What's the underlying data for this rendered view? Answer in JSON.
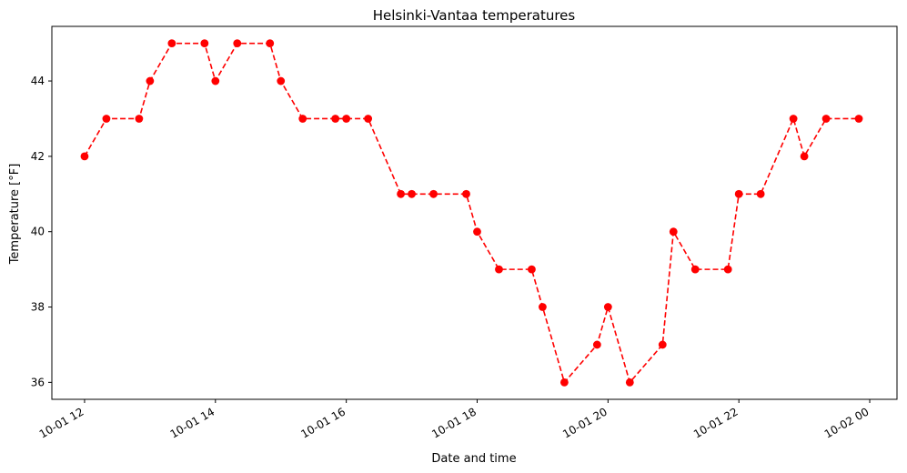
{
  "chart_data": {
    "type": "line",
    "title": "Helsinki-Vantaa temperatures",
    "xlabel": "Date and time",
    "ylabel": "Temperature [°F]",
    "x_ticks": [
      {
        "t": "2021-10-01T12:00",
        "label": "10-01 12"
      },
      {
        "t": "2021-10-01T14:00",
        "label": "10-01 14"
      },
      {
        "t": "2021-10-01T16:00",
        "label": "10-01 16"
      },
      {
        "t": "2021-10-01T18:00",
        "label": "10-01 18"
      },
      {
        "t": "2021-10-01T20:00",
        "label": "10-01 20"
      },
      {
        "t": "2021-10-01T22:00",
        "label": "10-01 22"
      },
      {
        "t": "2021-10-02T00:00",
        "label": "10-02 00"
      }
    ],
    "y_ticks": [
      36,
      38,
      40,
      42,
      44
    ],
    "xlim": [
      "2021-10-01T11:30",
      "2021-10-02T00:25"
    ],
    "ylim": [
      35.55,
      45.45
    ],
    "grid": false,
    "series": [
      {
        "color": "#ff0000",
        "line_style": "dashed",
        "marker": "circle",
        "points": [
          {
            "x": "2021-10-01T12:00",
            "y": 42
          },
          {
            "x": "2021-10-01T12:20",
            "y": 43
          },
          {
            "x": "2021-10-01T12:50",
            "y": 43
          },
          {
            "x": "2021-10-01T13:00",
            "y": 44
          },
          {
            "x": "2021-10-01T13:20",
            "y": 45
          },
          {
            "x": "2021-10-01T13:50",
            "y": 45
          },
          {
            "x": "2021-10-01T14:00",
            "y": 44
          },
          {
            "x": "2021-10-01T14:20",
            "y": 45
          },
          {
            "x": "2021-10-01T14:50",
            "y": 45
          },
          {
            "x": "2021-10-01T15:00",
            "y": 44
          },
          {
            "x": "2021-10-01T15:20",
            "y": 43
          },
          {
            "x": "2021-10-01T15:50",
            "y": 43
          },
          {
            "x": "2021-10-01T16:00",
            "y": 43
          },
          {
            "x": "2021-10-01T16:20",
            "y": 43
          },
          {
            "x": "2021-10-01T16:50",
            "y": 41
          },
          {
            "x": "2021-10-01T17:00",
            "y": 41
          },
          {
            "x": "2021-10-01T17:20",
            "y": 41
          },
          {
            "x": "2021-10-01T17:50",
            "y": 41
          },
          {
            "x": "2021-10-01T18:00",
            "y": 40
          },
          {
            "x": "2021-10-01T18:20",
            "y": 39
          },
          {
            "x": "2021-10-01T18:50",
            "y": 39
          },
          {
            "x": "2021-10-01T19:00",
            "y": 38
          },
          {
            "x": "2021-10-01T19:20",
            "y": 36
          },
          {
            "x": "2021-10-01T19:50",
            "y": 37
          },
          {
            "x": "2021-10-01T20:00",
            "y": 38
          },
          {
            "x": "2021-10-01T20:20",
            "y": 36
          },
          {
            "x": "2021-10-01T20:50",
            "y": 37
          },
          {
            "x": "2021-10-01T21:00",
            "y": 40
          },
          {
            "x": "2021-10-01T21:20",
            "y": 39
          },
          {
            "x": "2021-10-01T21:50",
            "y": 39
          },
          {
            "x": "2021-10-01T22:00",
            "y": 41
          },
          {
            "x": "2021-10-01T22:20",
            "y": 41
          },
          {
            "x": "2021-10-01T22:50",
            "y": 43
          },
          {
            "x": "2021-10-01T23:00",
            "y": 42
          },
          {
            "x": "2021-10-01T23:20",
            "y": 43
          },
          {
            "x": "2021-10-01T23:50",
            "y": 43
          }
        ]
      }
    ]
  }
}
